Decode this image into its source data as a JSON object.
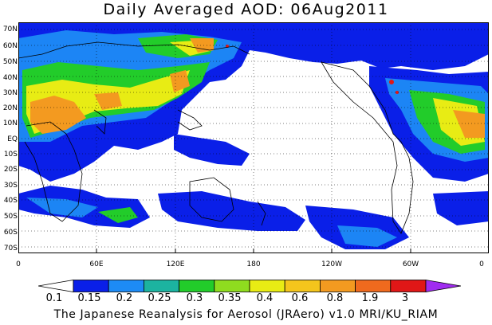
{
  "title": "Daily Averaged AOD: 06Aug2011",
  "credit": "The Japanese Reanalysis for Aerosol (JRAero) v1.0 MRI/KU_RIAM",
  "map": {
    "lat_labels": [
      "70N",
      "60N",
      "50N",
      "40N",
      "30N",
      "20N",
      "10N",
      "EQ",
      "10S",
      "20S",
      "30S",
      "40S",
      "50S",
      "60S",
      "70S"
    ],
    "lon_labels": [
      "0",
      "60E",
      "120E",
      "180",
      "120W",
      "60W",
      "0"
    ],
    "lon_range": [
      0,
      360
    ],
    "lat_range": [
      -76,
      76
    ],
    "grid": true
  },
  "colorbar": {
    "labels": [
      "0.1",
      "0.15",
      "0.2",
      "0.25",
      "0.3",
      "0.35",
      "0.4",
      "0.6",
      "0.8",
      "1.9",
      "3"
    ],
    "colors": [
      "#ffffff",
      "#0a1fe8",
      "#1d8bf5",
      "#1cb3a0",
      "#22cc2a",
      "#8fdc1f",
      "#e8ec14",
      "#f4c51c",
      "#f39a20",
      "#ef6a1e",
      "#e01717",
      "#a02cf0"
    ]
  }
}
